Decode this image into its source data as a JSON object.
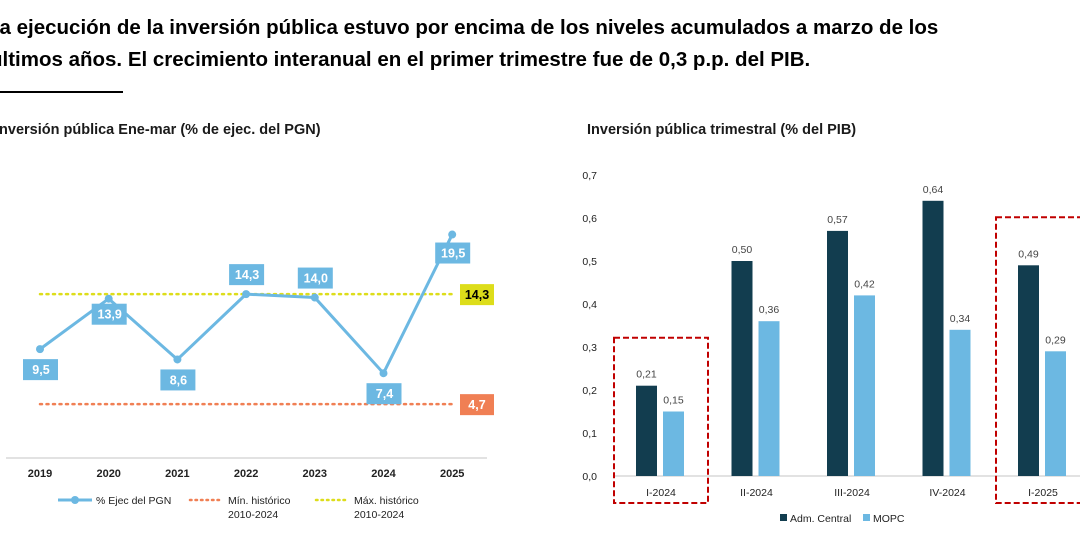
{
  "header": {
    "title_line1": "La ejecución de la inversión pública estuvo por encima de los niveles acumulados a marzo de los",
    "title_line2": "últimos años. El crecimiento interanual en el primer trimestre fue de 0,3 p.p. del PIB."
  },
  "chart_data": [
    {
      "type": "line",
      "title": "Inversión pública Ene-mar (% de ejec. del PGN)",
      "categories": [
        "2019",
        "2020",
        "2021",
        "2022",
        "2023",
        "2024",
        "2025"
      ],
      "series": [
        {
          "name": "% Ejec del PGN",
          "values": [
            9.5,
            13.9,
            8.6,
            14.3,
            14.0,
            7.4,
            19.5
          ],
          "labels": [
            "9,5",
            "13,9",
            "8,6",
            "14,3",
            "14,0",
            "7,4",
            "19,5"
          ],
          "color": "#6cb8e2"
        }
      ],
      "reference_lines": [
        {
          "name": "Mín. histórico 2010-2024",
          "name_lines": [
            "Mín. histórico",
            "2010-2024"
          ],
          "value": 4.7,
          "label": "4,7",
          "color": "#f07f54"
        },
        {
          "name": "Máx. histórico 2010-2024",
          "name_lines": [
            "Máx. histórico",
            "2010-2024"
          ],
          "value": 14.3,
          "label": "14,3",
          "color": "#dddd1a"
        }
      ],
      "grid": false,
      "legend": "bottom"
    },
    {
      "type": "bar",
      "title": "Inversión pública trimestral (% del PIB)",
      "categories": [
        "I-2024",
        "II-2024",
        "III-2024",
        "IV-2024",
        "I-2025"
      ],
      "series": [
        {
          "name": "Adm. Central",
          "values": [
            0.21,
            0.5,
            0.57,
            0.64,
            0.49
          ],
          "labels": [
            "0,21",
            "0,50",
            "0,57",
            "0,64",
            "0,49"
          ],
          "color": "#123d4f"
        },
        {
          "name": "MOPC",
          "values": [
            0.15,
            0.36,
            0.42,
            0.34,
            0.29
          ],
          "labels": [
            "0,15",
            "0,36",
            "0,42",
            "0,34",
            "0,29"
          ],
          "color": "#6cb8e2"
        }
      ],
      "yticks": [
        "0,0",
        "0,1",
        "0,2",
        "0,3",
        "0,4",
        "0,5",
        "0,6",
        "0,7"
      ],
      "ylim": [
        0,
        0.7
      ],
      "highlighted_categories": [
        "I-2024",
        "I-2025"
      ],
      "highlight_color": "#c00000",
      "grid": false,
      "legend": "bottom"
    }
  ]
}
